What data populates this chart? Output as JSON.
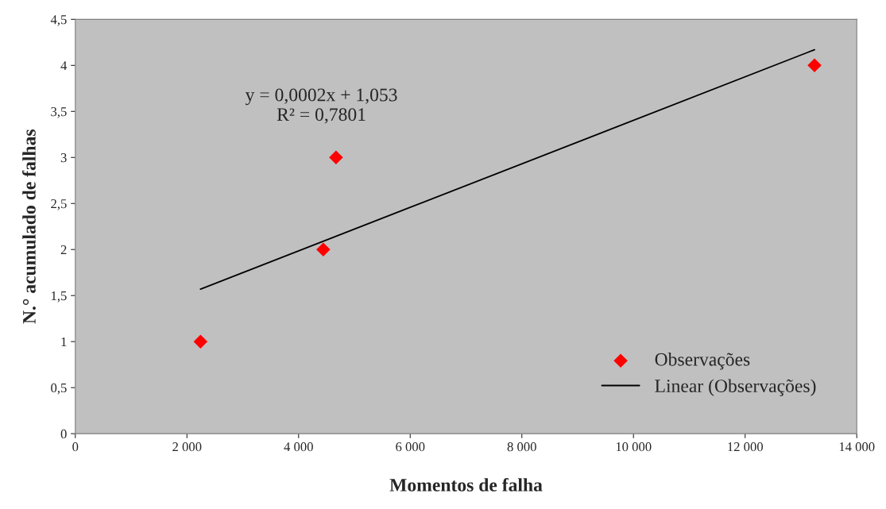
{
  "chart_data": {
    "type": "scatter",
    "xlabel": "Momentos de falha",
    "ylabel": "N.° acumulado de falhas",
    "series": [
      {
        "name": "Observações",
        "color": "#ff0000",
        "marker": "diamond",
        "x": [
          2243,
          4443,
          4671,
          13243
        ],
        "values": [
          1,
          2,
          3,
          4
        ]
      },
      {
        "name": "Linear (Observações)",
        "type": "line",
        "color": "#000000",
        "marker": "none",
        "x": [
          2243,
          13243
        ],
        "values": [
          1.57,
          4.17
        ]
      }
    ],
    "annotations": [
      "y = 0,0002x + 1,053\nR² = 0,7801"
    ],
    "xlim": [
      0,
      14000
    ],
    "ylim": [
      0,
      4.5
    ],
    "xticks": [
      0,
      {
        "value": 2000,
        "label": "2 000"
      },
      {
        "value": 4000,
        "label": "4 000"
      },
      {
        "value": 6000,
        "label": "6 000"
      },
      {
        "value": 8000,
        "label": "8 000"
      },
      {
        "value": 10000,
        "label": "10 000"
      },
      {
        "value": 12000,
        "label": "12 000"
      },
      {
        "value": 14000,
        "label": "14 000"
      }
    ],
    "yticks": [
      0,
      {
        "value": 0.5,
        "label": "0,5"
      },
      1,
      {
        "value": 1.5,
        "label": "1,5"
      },
      2,
      {
        "value": 2.5,
        "label": "2,5"
      },
      3,
      {
        "value": 3.5,
        "label": "3,5"
      },
      4,
      {
        "value": 4.5,
        "label": "4,5"
      }
    ],
    "grid": false,
    "legend": "bottom right"
  }
}
